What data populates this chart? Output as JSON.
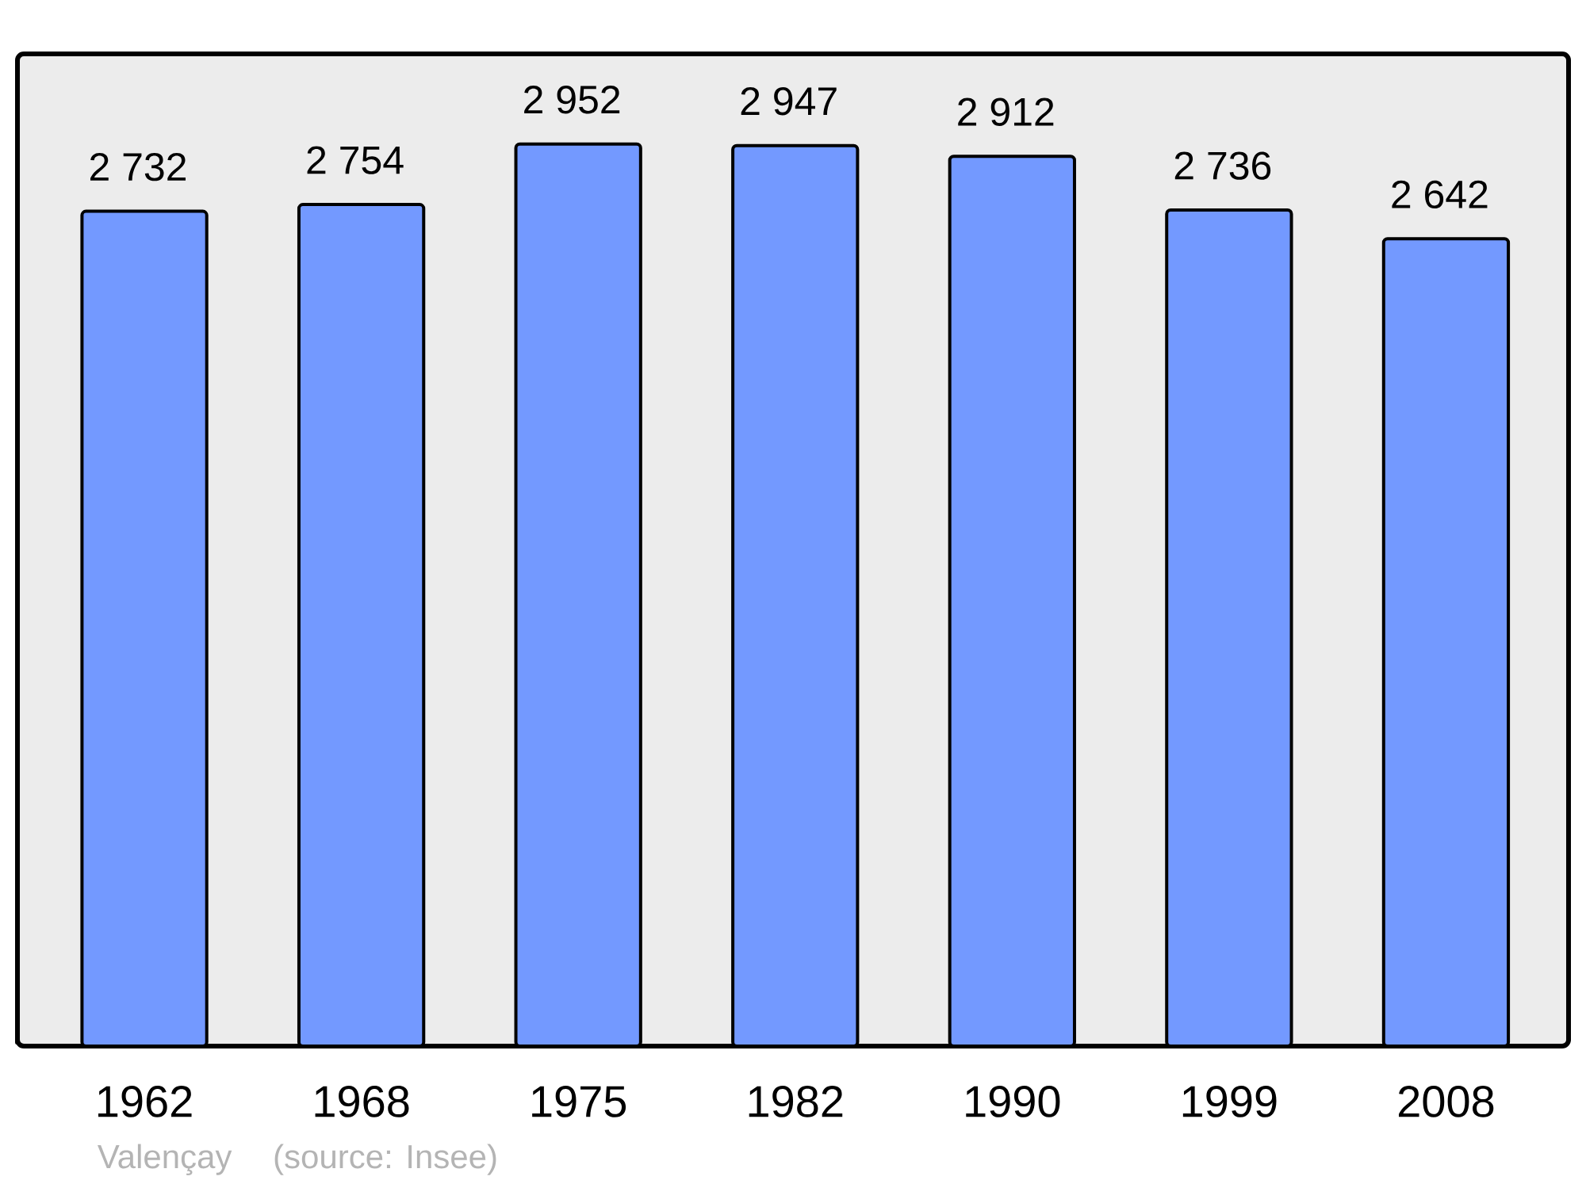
{
  "chart_data": {
    "type": "bar",
    "categories": [
      "1962",
      "1968",
      "1975",
      "1982",
      "1990",
      "1999",
      "2008"
    ],
    "values": [
      2732,
      2754,
      2952,
      2947,
      2912,
      2736,
      2642
    ],
    "value_labels": [
      "2 732",
      "2 754",
      "2 952",
      "2 947",
      "2 912",
      "2 736",
      "2 642"
    ],
    "color": "#7399ff",
    "annotations": [
      "Valençay",
      "(source: Insee)"
    ]
  }
}
